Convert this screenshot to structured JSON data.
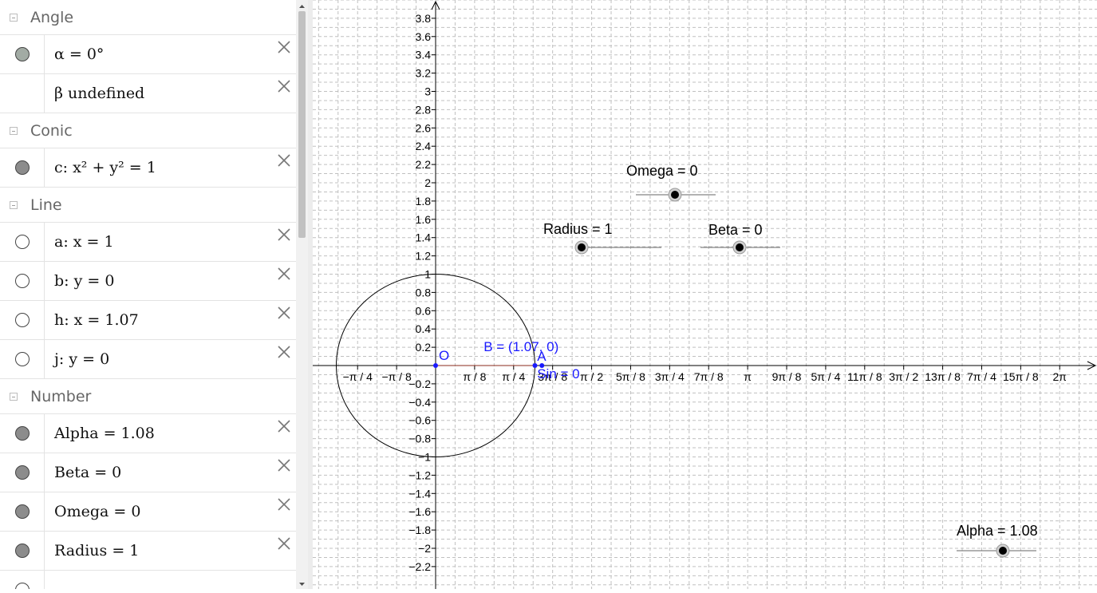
{
  "algebra": {
    "groups": [
      {
        "label": "Angle",
        "items": [
          {
            "text": "α = 0°",
            "marble": "filled-green"
          },
          {
            "text": "β undefined",
            "marble": "none"
          }
        ]
      },
      {
        "label": "Conic",
        "items": [
          {
            "text": "c: x² + y² = 1",
            "marble": "filled"
          }
        ]
      },
      {
        "label": "Line",
        "items": [
          {
            "text": "a: x = 1",
            "marble": "empty"
          },
          {
            "text": "b: y = 0",
            "marble": "empty"
          },
          {
            "text": "h: x = 1.07",
            "marble": "empty"
          },
          {
            "text": "j: y = 0",
            "marble": "empty"
          }
        ]
      },
      {
        "label": "Number",
        "items": [
          {
            "text": "Alpha = 1.08",
            "marble": "filled"
          },
          {
            "text": "Beta = 0",
            "marble": "filled"
          },
          {
            "text": "Omega = 0",
            "marble": "filled"
          },
          {
            "text": "Radius = 1",
            "marble": "filled"
          }
        ]
      }
    ]
  },
  "graphics": {
    "x_ticks": [
      "−π / 4",
      "−π / 8",
      "π / 8",
      "π / 4",
      "3π / 8",
      "π / 2",
      "5π / 8",
      "3π / 4",
      "7π / 8",
      "π",
      "9π / 8",
      "5π / 4",
      "11π / 8",
      "3π / 2",
      "13π / 8",
      "7π / 4",
      "15π / 8",
      "2π"
    ],
    "y_range": [
      -2.2,
      3.8
    ],
    "y_step": 0.2,
    "circle": {
      "label": "c",
      "center": [
        0,
        0
      ],
      "radius": 1
    },
    "points": [
      {
        "name": "O",
        "label": "O",
        "x": 0,
        "y": 0
      },
      {
        "name": "A",
        "label": "A",
        "x": 1.07,
        "y": 0
      },
      {
        "name": "B",
        "label": "B = (1.07, 0)",
        "x": 1.07,
        "y": 0
      }
    ],
    "sin_label": "Sin = 0",
    "sliders": [
      {
        "name": "omega",
        "label": "Omega = 0",
        "value": 0
      },
      {
        "name": "radius",
        "label": "Radius = 1",
        "value": 1
      },
      {
        "name": "beta",
        "label": "Beta = 0",
        "value": 0
      },
      {
        "name": "alpha",
        "label": "Alpha = 1.08",
        "value": 1.08
      }
    ],
    "colors": {
      "point": "#1a1aff",
      "label": "#1a1aff",
      "grid": "#c0c0c0",
      "axis": "#000000"
    }
  }
}
